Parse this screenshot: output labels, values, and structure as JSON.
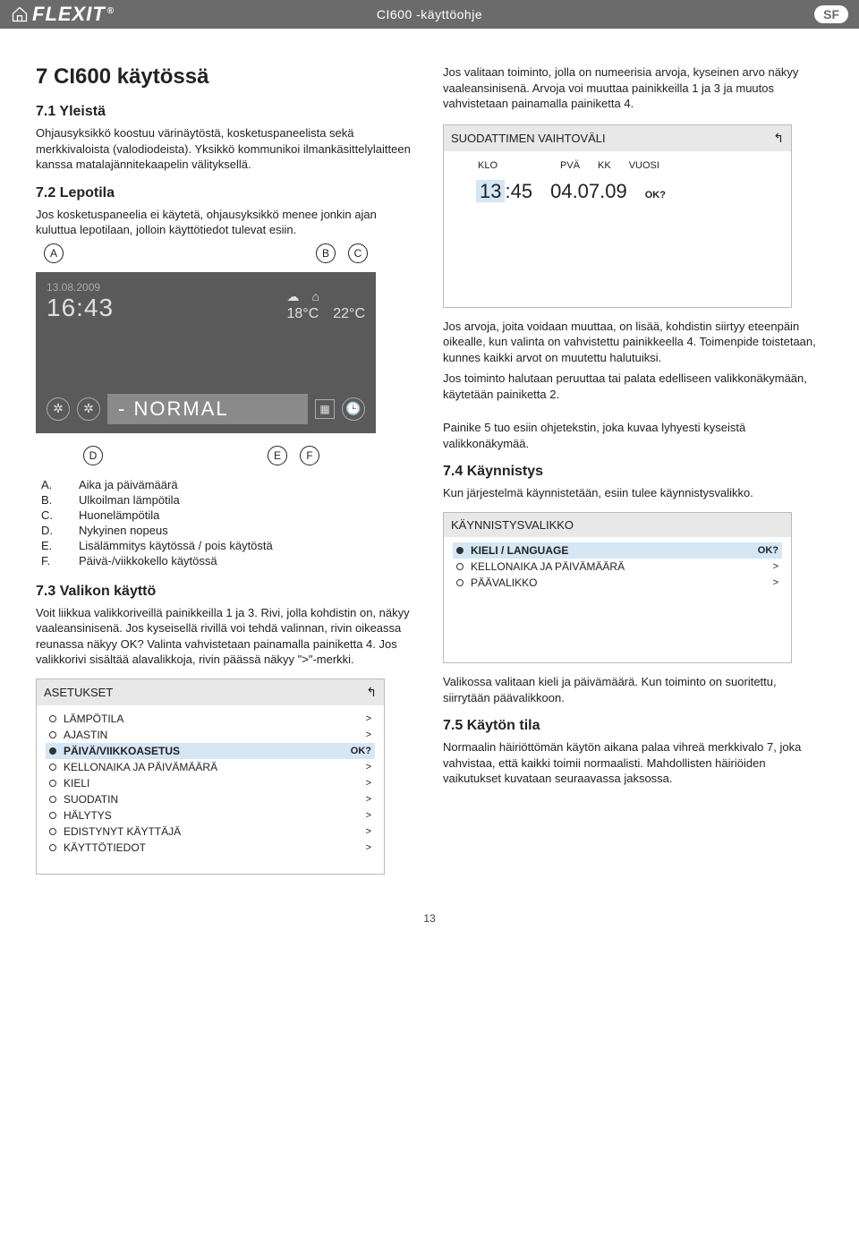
{
  "header": {
    "brand": "FLEXIT",
    "title": "CI600 -käyttöohje",
    "badge": "SF"
  },
  "h1": "7  CI600 käytössä",
  "s71": {
    "title": "7.1  Yleistä",
    "p1": "Ohjausyksikkö koostuu värinäytöstä, kosketuspaneelista sekä merkkivaloista (valodiodeista). Yksikkö kommunikoi ilmankäsittelylaitteen kanssa matalajännitekaapelin välityksellä."
  },
  "s72": {
    "title": "7.2  Lepotila",
    "p1": "Jos kosketuspaneelia ei käytetä, ohjausyksikkö menee jonkin ajan kuluttua lepotilaan, jolloin käyttötiedot tulevat esiin."
  },
  "labels": {
    "A": "A",
    "B": "B",
    "C": "C",
    "D": "D",
    "E": "E",
    "F": "F"
  },
  "display": {
    "date": "13.08.2009",
    "time": "16:43",
    "t1": "18°C",
    "t2": "22°C",
    "mode_prefix": "-",
    "mode": "NORMAL"
  },
  "defs": {
    "A": "Aika ja päivämäärä",
    "B": "Ulkoilman lämpötila",
    "C": "Huonelämpötila",
    "D": "Nykyinen nopeus",
    "E": "Lisälämmitys käytössä / pois käytöstä",
    "F": "Päivä-/viikkokello käytössä"
  },
  "s73": {
    "title": "7.3  Valikon käyttö",
    "p1": "Voit liikkua valikkoriveillä painikkeilla 1 ja 3. Rivi, jolla kohdistin on, näkyy vaaleansinisenä. Jos kyseisellä rivillä voi tehdä valinnan, rivin oikeassa reunassa näkyy OK? Valinta vahvistetaan painamalla painiketta 4. Jos valikkorivi sisältää alavalikkoja, rivin päässä näkyy \">\"-merkki."
  },
  "settings_menu": {
    "title": "ASETUKSET",
    "items": [
      {
        "label": "LÄMPÖTILA",
        "sfx": ">",
        "sel": false
      },
      {
        "label": "AJASTIN",
        "sfx": ">",
        "sel": false
      },
      {
        "label": "PÄIVÄ/VIIKKOASETUS",
        "sfx": "OK?",
        "sel": true
      },
      {
        "label": "KELLONAIKA JA PÄIVÄMÄÄRÄ",
        "sfx": ">",
        "sel": false
      },
      {
        "label": "KIELI",
        "sfx": ">",
        "sel": false
      },
      {
        "label": "SUODATIN",
        "sfx": ">",
        "sel": false
      },
      {
        "label": "HÄLYTYS",
        "sfx": ">",
        "sel": false
      },
      {
        "label": "EDISTYNYT KÄYTTÄJÄ",
        "sfx": ">",
        "sel": false
      },
      {
        "label": "KÄYTTÖTIEDOT",
        "sfx": ">",
        "sel": false
      }
    ]
  },
  "right": {
    "p1": "Jos valitaan toiminto, jolla on numeerisia arvoja, kyseinen arvo näkyy vaaleansinisenä. Arvoja voi muuttaa painikkeilla 1 ja 3 ja muutos vahvistetaan painamalla painiketta 4.",
    "p2": "Jos arvoja, joita voidaan muuttaa, on lisää, kohdistin siirtyy eteenpäin oikealle, kun valinta on vahvistettu painikkeella 4. Toimenpide toistetaan, kunnes kaikki arvot on muutettu halutuiksi.",
    "p3": "Jos toiminto halutaan peruuttaa tai palata edelliseen valikkonäkymään, käytetään painiketta 2.",
    "p4": "Painike 5 tuo esiin ohjetekstin, joka kuvaa lyhyesti kyseistä valikkonäkymää."
  },
  "filter_menu": {
    "title": "SUODATTIMEN VAIHTOVÄLI",
    "h1": "KLO",
    "h2": "PVÄ",
    "h3": "KK",
    "h4": "VUOSI",
    "hh": "13",
    "mm": "45",
    "date": "04.07.09",
    "ok": "OK?",
    "colon": ":"
  },
  "s74": {
    "title": "7.4  Käynnistys",
    "p1": "Kun järjestelmä käynnistetään, esiin tulee käynnistysvalikko."
  },
  "start_menu": {
    "title": "KÄYNNISTYSVALIKKO",
    "items": [
      {
        "label": "KIELI / LANGUAGE",
        "sfx": "OK?",
        "sel": true
      },
      {
        "label": "KELLONAIKA JA PÄIVÄMÄÄRÄ",
        "sfx": ">",
        "sel": false
      },
      {
        "label": "PÄÄVALIKKO",
        "sfx": ">",
        "sel": false
      }
    ]
  },
  "after_start": "Valikossa valitaan kieli ja päivämäärä. Kun toiminto on suoritettu, siirrytään päävalikkoon.",
  "s75": {
    "title": "7.5  Käytön tila",
    "p1": "Normaalin häiriöttömän käytön aikana palaa vihreä merkkivalo 7, joka vahvistaa, että kaikki toimii normaalisti. Mahdollisten häiriöiden vaikutukset kuvataan seuraavassa jaksossa."
  },
  "footer": "13"
}
